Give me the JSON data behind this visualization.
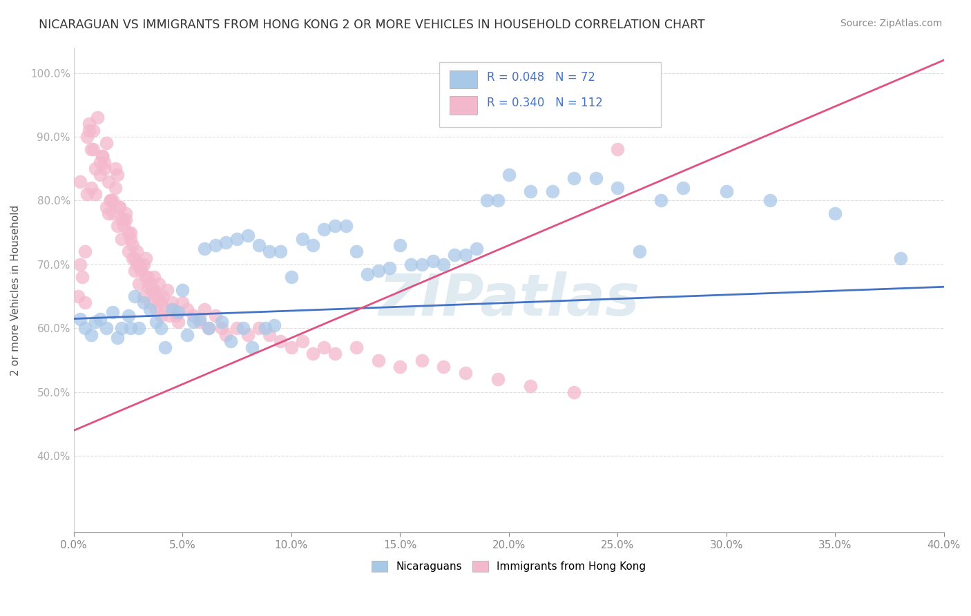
{
  "title": "NICARAGUAN VS IMMIGRANTS FROM HONG KONG 2 OR MORE VEHICLES IN HOUSEHOLD CORRELATION CHART",
  "source": "Source: ZipAtlas.com",
  "ylabel_label": "2 or more Vehicles in Household",
  "legend_label_blue": "Nicaraguans",
  "legend_label_pink": "Immigrants from Hong Kong",
  "r_blue": 0.048,
  "n_blue": 72,
  "r_pink": 0.34,
  "n_pink": 112,
  "blue_color": "#a8c8e8",
  "pink_color": "#f4b8cc",
  "blue_line_color": "#4472c4",
  "pink_line_color": "#e05080",
  "watermark": "ZIPatlas",
  "background_color": "#ffffff",
  "grid_color": "#dddddd",
  "xlim": [
    0.0,
    0.4
  ],
  "ylim": [
    0.28,
    1.04
  ],
  "blue_trend_x": [
    0.0,
    0.4
  ],
  "blue_trend_y": [
    0.615,
    0.665
  ],
  "pink_trend_x": [
    0.0,
    0.4
  ],
  "pink_trend_y": [
    0.44,
    1.02
  ],
  "blue_points_x": [
    0.003,
    0.005,
    0.008,
    0.01,
    0.012,
    0.015,
    0.018,
    0.02,
    0.022,
    0.025,
    0.026,
    0.028,
    0.03,
    0.032,
    0.035,
    0.038,
    0.04,
    0.042,
    0.045,
    0.048,
    0.05,
    0.052,
    0.055,
    0.058,
    0.06,
    0.062,
    0.065,
    0.068,
    0.07,
    0.072,
    0.075,
    0.078,
    0.08,
    0.082,
    0.085,
    0.088,
    0.09,
    0.092,
    0.095,
    0.1,
    0.105,
    0.11,
    0.115,
    0.12,
    0.125,
    0.13,
    0.135,
    0.14,
    0.145,
    0.15,
    0.155,
    0.16,
    0.165,
    0.17,
    0.175,
    0.18,
    0.185,
    0.19,
    0.195,
    0.2,
    0.21,
    0.22,
    0.23,
    0.24,
    0.25,
    0.26,
    0.27,
    0.28,
    0.3,
    0.32,
    0.35,
    0.38
  ],
  "blue_points_y": [
    0.615,
    0.6,
    0.59,
    0.61,
    0.615,
    0.6,
    0.625,
    0.585,
    0.6,
    0.62,
    0.6,
    0.65,
    0.6,
    0.64,
    0.63,
    0.61,
    0.6,
    0.57,
    0.63,
    0.625,
    0.66,
    0.59,
    0.61,
    0.615,
    0.725,
    0.6,
    0.73,
    0.61,
    0.735,
    0.58,
    0.74,
    0.6,
    0.745,
    0.57,
    0.73,
    0.6,
    0.72,
    0.605,
    0.72,
    0.68,
    0.74,
    0.73,
    0.755,
    0.76,
    0.76,
    0.72,
    0.685,
    0.69,
    0.695,
    0.73,
    0.7,
    0.7,
    0.705,
    0.7,
    0.715,
    0.715,
    0.725,
    0.8,
    0.8,
    0.84,
    0.815,
    0.815,
    0.835,
    0.835,
    0.82,
    0.72,
    0.8,
    0.82,
    0.815,
    0.8,
    0.78,
    0.71
  ],
  "pink_points_x": [
    0.002,
    0.003,
    0.004,
    0.005,
    0.006,
    0.007,
    0.008,
    0.009,
    0.01,
    0.011,
    0.012,
    0.013,
    0.014,
    0.015,
    0.016,
    0.017,
    0.018,
    0.019,
    0.02,
    0.021,
    0.022,
    0.023,
    0.024,
    0.025,
    0.026,
    0.027,
    0.028,
    0.029,
    0.03,
    0.031,
    0.032,
    0.033,
    0.034,
    0.035,
    0.036,
    0.037,
    0.038,
    0.039,
    0.04,
    0.041,
    0.042,
    0.043,
    0.044,
    0.045,
    0.046,
    0.047,
    0.048,
    0.05,
    0.052,
    0.055,
    0.058,
    0.06,
    0.062,
    0.065,
    0.068,
    0.07,
    0.075,
    0.08,
    0.085,
    0.09,
    0.095,
    0.1,
    0.105,
    0.11,
    0.115,
    0.12,
    0.13,
    0.14,
    0.15,
    0.16,
    0.17,
    0.18,
    0.195,
    0.21,
    0.23,
    0.005,
    0.008,
    0.01,
    0.012,
    0.015,
    0.018,
    0.02,
    0.022,
    0.025,
    0.028,
    0.03,
    0.032,
    0.035,
    0.038,
    0.04,
    0.003,
    0.006,
    0.009,
    0.014,
    0.016,
    0.019,
    0.023,
    0.026,
    0.029,
    0.033,
    0.036,
    0.007,
    0.013,
    0.017,
    0.021,
    0.024,
    0.027,
    0.031,
    0.034,
    0.037,
    0.039,
    0.25
  ],
  "pink_points_y": [
    0.65,
    0.7,
    0.68,
    0.72,
    0.9,
    0.92,
    0.88,
    0.91,
    0.85,
    0.93,
    0.86,
    0.87,
    0.85,
    0.89,
    0.83,
    0.8,
    0.78,
    0.82,
    0.84,
    0.79,
    0.77,
    0.76,
    0.78,
    0.75,
    0.74,
    0.73,
    0.71,
    0.72,
    0.7,
    0.69,
    0.7,
    0.71,
    0.68,
    0.67,
    0.66,
    0.68,
    0.65,
    0.67,
    0.64,
    0.65,
    0.63,
    0.66,
    0.62,
    0.64,
    0.63,
    0.62,
    0.61,
    0.64,
    0.63,
    0.62,
    0.61,
    0.63,
    0.6,
    0.62,
    0.6,
    0.59,
    0.6,
    0.59,
    0.6,
    0.59,
    0.58,
    0.57,
    0.58,
    0.56,
    0.57,
    0.56,
    0.57,
    0.55,
    0.54,
    0.55,
    0.54,
    0.53,
    0.52,
    0.51,
    0.5,
    0.64,
    0.82,
    0.81,
    0.84,
    0.79,
    0.8,
    0.76,
    0.74,
    0.72,
    0.69,
    0.67,
    0.65,
    0.64,
    0.63,
    0.62,
    0.83,
    0.81,
    0.88,
    0.86,
    0.78,
    0.85,
    0.77,
    0.75,
    0.7,
    0.68,
    0.66,
    0.91,
    0.87,
    0.8,
    0.79,
    0.77,
    0.71,
    0.695,
    0.665,
    0.66,
    0.645,
    0.88
  ]
}
